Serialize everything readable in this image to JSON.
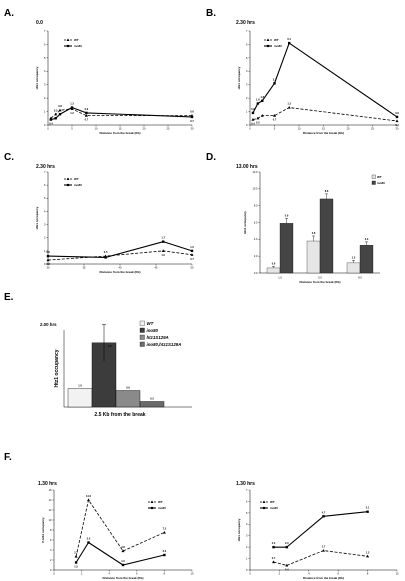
{
  "panel_labels": [
    "A.",
    "B.",
    "C.",
    "D.",
    "E.",
    "F."
  ],
  "chart_data": [
    {
      "id": "A",
      "type": "line",
      "title": "0.0",
      "xlabel": "Distance from the break (Kb)",
      "ylabel": "Htz1 occupancy",
      "xlim": [
        0,
        30
      ],
      "ylim": [
        0,
        7
      ],
      "xticks": [
        0,
        5,
        10,
        15,
        20,
        25,
        30
      ],
      "yticks": [
        0,
        1,
        2,
        3,
        4,
        5,
        6,
        7
      ],
      "legend": "top-left",
      "series": [
        {
          "name": "WT",
          "style": "dashed-triangle",
          "x": [
            0.6,
            1.6,
            2.5,
            5,
            8,
            30
          ],
          "values": [
            0.5,
            0.8,
            1.1,
            1.2,
            0.7,
            0.7
          ]
        },
        {
          "name": "ino80",
          "style": "solid-square",
          "x": [
            0.6,
            1.6,
            2.5,
            5,
            8,
            30
          ],
          "values": [
            0.4,
            0.5,
            0.8,
            1.3,
            0.9,
            0.6
          ]
        }
      ],
      "data_labels": [
        {
          "text": "0.4",
          "x": 0.6,
          "y": 0.4,
          "pos": "below"
        },
        {
          "text": "0.5",
          "x": 1.6,
          "y": 0.8,
          "pos": "above"
        },
        {
          "text": "0.8",
          "x": 2.5,
          "y": 1.1,
          "pos": "above"
        },
        {
          "text": "1.3",
          "x": 5,
          "y": 1.3,
          "pos": "above"
        },
        {
          "text": "1.2",
          "x": 5,
          "y": 1.2,
          "pos": "below"
        },
        {
          "text": "0.9",
          "x": 8,
          "y": 0.9,
          "pos": "above"
        },
        {
          "text": "0.7",
          "x": 8,
          "y": 0.7,
          "pos": "below"
        },
        {
          "text": "0.6",
          "x": 30,
          "y": 0.7,
          "pos": "above"
        },
        {
          "text": "0.7",
          "x": 30,
          "y": 0.6,
          "pos": "below"
        }
      ]
    },
    {
      "id": "B",
      "type": "line",
      "title": "2.30 hrs",
      "xlabel": "Distance from the break (Kb)",
      "ylabel": "Htz1 occupancy",
      "xlim": [
        0,
        30
      ],
      "ylim": [
        0,
        7
      ],
      "xticks": [
        0,
        5,
        10,
        15,
        20,
        25,
        30
      ],
      "yticks": [
        0,
        1,
        2,
        3,
        4,
        5,
        6,
        7
      ],
      "legend": "top-left",
      "series": [
        {
          "name": "WT",
          "style": "dashed-triangle",
          "x": [
            0.6,
            1.6,
            2.5,
            5,
            8,
            30
          ],
          "values": [
            0.4,
            0.5,
            0.7,
            0.7,
            1.3,
            0.3
          ]
        },
        {
          "name": "ino80",
          "style": "solid-square",
          "x": [
            0.6,
            1.6,
            2.5,
            5,
            8,
            30
          ],
          "values": [
            0.9,
            1.6,
            1.8,
            3.1,
            6.1,
            0.6
          ]
        }
      ],
      "data_labels": [
        {
          "text": "0.9",
          "x": 0.6,
          "y": 0.9,
          "pos": "above"
        },
        {
          "text": "1.6",
          "x": 1.6,
          "y": 1.6,
          "pos": "above"
        },
        {
          "text": "1.8",
          "x": 2.5,
          "y": 1.8,
          "pos": "above"
        },
        {
          "text": "0.4",
          "x": 0.6,
          "y": 0.4,
          "pos": "below"
        },
        {
          "text": "0.5",
          "x": 1.6,
          "y": 0.5,
          "pos": "below"
        },
        {
          "text": "0.7",
          "x": 5,
          "y": 0.7,
          "pos": "below"
        },
        {
          "text": "3.1",
          "x": 5,
          "y": 3.1,
          "pos": "above"
        },
        {
          "text": "6.1",
          "x": 8,
          "y": 6.1,
          "pos": "above"
        },
        {
          "text": "1.3",
          "x": 8,
          "y": 1.3,
          "pos": "above"
        },
        {
          "text": "0.6",
          "x": 30,
          "y": 0.6,
          "pos": "above"
        },
        {
          "text": "0.3",
          "x": 30,
          "y": 0.3,
          "pos": "below"
        }
      ]
    },
    {
      "id": "C",
      "type": "line",
      "title": "2.30 hrs",
      "xlabel": "Distance from the break (Kb)",
      "ylabel": "Htz1 occupancy",
      "xlim": [
        30,
        50
      ],
      "ylim": [
        0,
        7
      ],
      "xticks": [
        30,
        35,
        40,
        45,
        50
      ],
      "yticks": [
        0,
        1,
        2,
        3,
        4,
        5,
        6,
        7
      ],
      "legend": "top-left",
      "series": [
        {
          "name": "WT",
          "style": "dashed-triangle",
          "x": [
            30,
            38,
            46,
            50
          ],
          "values": [
            0.3,
            0.6,
            1.0,
            0.7
          ]
        },
        {
          "name": "ino80",
          "style": "solid-square",
          "x": [
            30,
            38,
            46,
            50
          ],
          "values": [
            0.6,
            0.5,
            1.7,
            1.0
          ]
        }
      ],
      "data_labels": [
        {
          "text": "0.6",
          "x": 30,
          "y": 0.6,
          "pos": "above"
        },
        {
          "text": "0.3",
          "x": 30,
          "y": 0.3,
          "pos": "below"
        },
        {
          "text": "0.5",
          "x": 38,
          "y": 0.6,
          "pos": "above"
        },
        {
          "text": "1.7",
          "x": 46,
          "y": 1.7,
          "pos": "above"
        },
        {
          "text": "1.0",
          "x": 46,
          "y": 1.0,
          "pos": "below"
        },
        {
          "text": "1.0",
          "x": 50,
          "y": 1.0,
          "pos": "above"
        },
        {
          "text": "0.7",
          "x": 50,
          "y": 0.7,
          "pos": "below"
        }
      ]
    },
    {
      "id": "D",
      "type": "bar",
      "title": "13.00 hrs",
      "xlabel": "Distance from the break (Kb)",
      "ylabel": "Htz1 occupancy",
      "ylim": [
        0,
        12
      ],
      "yticks": [
        0,
        2,
        4,
        6,
        8,
        10,
        12
      ],
      "ytick_labels": [
        "0.0",
        "2.0",
        "4.0",
        "6.0",
        "8.0",
        "10.0",
        "12.0"
      ],
      "legend": "top-right",
      "categories": [
        "1.6",
        "5.0",
        "8.0"
      ],
      "series": [
        {
          "name": "WT",
          "color": "#e6e6e6",
          "values": [
            0.6,
            3.8,
            1.2
          ],
          "errors": [
            0.2,
            0.6,
            0.3
          ]
        },
        {
          "name": "ino80",
          "color": "#454545",
          "values": [
            5.9,
            8.8,
            3.3
          ],
          "errors": [
            0.6,
            0.6,
            0.4
          ]
        }
      ],
      "data_labels": [
        "0.6",
        "5.9",
        "3.8",
        "8.8",
        "1.2",
        "3.3"
      ]
    },
    {
      "id": "E",
      "type": "bar",
      "title": "2.00 hrs",
      "xlabel": "2.5 Kb from the break",
      "ylabel": "Htz1 occupancy",
      "ylim": [
        0,
        4.2
      ],
      "legend": "right",
      "categories": [
        "2.5 Kb from the break"
      ],
      "series": [
        {
          "name": "WT",
          "color": "#f2f2f2",
          "values": [
            1.0
          ],
          "errors": [
            0
          ]
        },
        {
          "name": "ino80",
          "color": "#3c3c3c",
          "values": [
            3.5
          ],
          "errors": [
            1.0
          ]
        },
        {
          "name": "htz1S129A",
          "color": "#8a8a8a",
          "values": [
            0.9
          ],
          "errors": [
            0
          ]
        },
        {
          "name": "ino80,htz1S129A",
          "color": "#6a6a6a",
          "values": [
            0.3
          ],
          "errors": [
            0
          ]
        }
      ],
      "data_labels": [
        "1.0",
        "3.5",
        "0.9",
        "0.3"
      ]
    },
    {
      "id": "F1",
      "type": "line",
      "title": "1.30 hrs",
      "xlabel": "Distance from the break (Kb)",
      "ylabel": "P-H2A occupancy",
      "xlim": [
        0,
        10
      ],
      "ylim": [
        0,
        16
      ],
      "xticks": [
        0,
        2,
        4,
        6,
        8,
        10
      ],
      "yticks": [
        0,
        2,
        4,
        6,
        8,
        10,
        12,
        14,
        16
      ],
      "legend": "top-right",
      "series": [
        {
          "name": "WT",
          "style": "dashed-triangle",
          "x": [
            1.6,
            2.5,
            5,
            8
          ],
          "values": [
            2.7,
            14.0,
            3.8,
            7.5
          ]
        },
        {
          "name": "ino80",
          "style": "solid-square",
          "x": [
            1.6,
            2.5,
            5,
            8
          ],
          "values": [
            1.5,
            5.5,
            1.0,
            3.0
          ]
        }
      ],
      "data_labels": [
        {
          "text": "2.7",
          "x": 1.6,
          "y": 2.7,
          "pos": "above"
        },
        {
          "text": "1.5",
          "x": 1.6,
          "y": 1.5,
          "pos": "below"
        },
        {
          "text": "14.0",
          "x": 2.5,
          "y": 14.0,
          "pos": "above"
        },
        {
          "text": "5.5",
          "x": 2.5,
          "y": 5.5,
          "pos": "above"
        },
        {
          "text": "3.8",
          "x": 5,
          "y": 3.8,
          "pos": "above"
        },
        {
          "text": "1.0",
          "x": 5,
          "y": 1.0,
          "pos": "above"
        },
        {
          "text": "7.5",
          "x": 8,
          "y": 7.5,
          "pos": "above"
        },
        {
          "text": "3.0",
          "x": 8,
          "y": 3.0,
          "pos": "above"
        }
      ]
    },
    {
      "id": "F2",
      "type": "line",
      "title": "1.30 hrs",
      "xlabel": "Distance from the break (Kb)",
      "ylabel": "Htz1 occupancy",
      "xlim": [
        0,
        10
      ],
      "ylim": [
        0,
        7
      ],
      "xticks": [
        0,
        2,
        4,
        6,
        8,
        10
      ],
      "yticks": [
        0,
        1,
        2,
        3,
        4,
        5,
        6,
        7
      ],
      "legend": "top-left",
      "series": [
        {
          "name": "WT",
          "style": "dashed-triangle",
          "x": [
            1.6,
            2.5,
            5,
            8
          ],
          "values": [
            0.7,
            0.4,
            1.7,
            1.2
          ]
        },
        {
          "name": "ino80",
          "style": "solid-square",
          "x": [
            1.6,
            2.5,
            5,
            8
          ],
          "values": [
            2.0,
            2.0,
            4.7,
            5.1
          ]
        }
      ],
      "data_labels": [
        {
          "text": "2.0",
          "x": 1.6,
          "y": 2.0,
          "pos": "above"
        },
        {
          "text": "2.0",
          "x": 2.5,
          "y": 2.0,
          "pos": "above"
        },
        {
          "text": "0.7",
          "x": 1.6,
          "y": 0.7,
          "pos": "above"
        },
        {
          "text": "0.4",
          "x": 2.5,
          "y": 0.4,
          "pos": "below"
        },
        {
          "text": "4.7",
          "x": 5,
          "y": 4.7,
          "pos": "above"
        },
        {
          "text": "1.7",
          "x": 5,
          "y": 1.7,
          "pos": "above"
        },
        {
          "text": "5.1",
          "x": 8,
          "y": 5.1,
          "pos": "above"
        },
        {
          "text": "1.2",
          "x": 8,
          "y": 1.2,
          "pos": "above"
        }
      ]
    }
  ]
}
